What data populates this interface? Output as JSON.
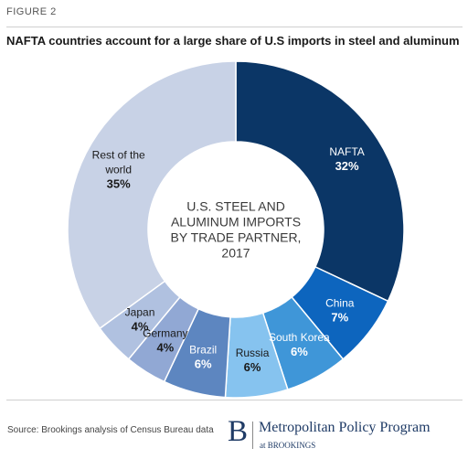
{
  "figure_label": "FIGURE 2",
  "chart_data": {
    "type": "pie",
    "title": "NAFTA countries account for a large share of U.S imports  in steel and aluminum",
    "center_label": [
      "U.S. STEEL AND",
      "ALUMINUM IMPORTS",
      "BY TRADE PARTNER,",
      "2017"
    ],
    "slices": [
      {
        "label": [
          "NAFTA"
        ],
        "value": 32,
        "value_label": "32%",
        "color": "#0b3666",
        "text_color": "#ffffff"
      },
      {
        "label": [
          "China"
        ],
        "value": 7,
        "value_label": "7%",
        "color": "#0d65be",
        "text_color": "#ffffff"
      },
      {
        "label": [
          "South Korea"
        ],
        "value": 6,
        "value_label": "6%",
        "color": "#3f96d8",
        "text_color": "#ffffff"
      },
      {
        "label": [
          "Russia"
        ],
        "value": 6,
        "value_label": "6%",
        "color": "#86c3ef",
        "text_color": "#1a1a1a"
      },
      {
        "label": [
          "Brazil"
        ],
        "value": 6,
        "value_label": "6%",
        "color": "#5d86c0",
        "text_color": "#ffffff"
      },
      {
        "label": [
          "Germany"
        ],
        "value": 4,
        "value_label": "4%",
        "color": "#91a8d4",
        "text_color": "#1a1a1a"
      },
      {
        "label": [
          "Japan"
        ],
        "value": 4,
        "value_label": "4%",
        "color": "#b0c1e0",
        "text_color": "#1a1a1a"
      },
      {
        "label": [
          "Rest of the",
          "world"
        ],
        "value": 35,
        "value_label": "35%",
        "color": "#c8d2e6",
        "text_color": "#1a1a1a"
      }
    ]
  },
  "source": "Source:  Brookings analysis of Census Bureau data",
  "logo": {
    "mark": "B",
    "name": "Metropolitan Policy Program",
    "sub": "at BROOKINGS"
  }
}
